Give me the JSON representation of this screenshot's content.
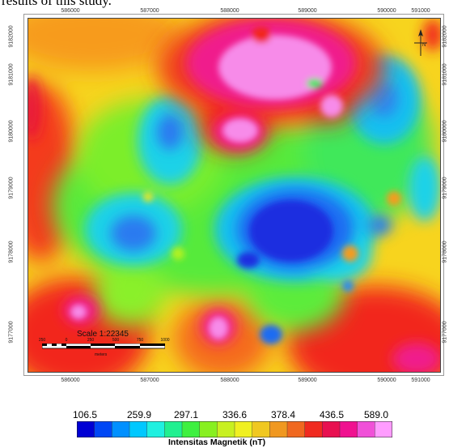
{
  "caption": "results of this study.",
  "map": {
    "x_ticks": [
      "586000",
      "587000",
      "588000",
      "589000",
      "590000",
      "591000"
    ],
    "y_ticks": [
      "9182000",
      "9181000",
      "9180000",
      "9179000",
      "9178000",
      "9177000"
    ],
    "scale": {
      "title": "Scale 1:22345",
      "ticks": [
        "250",
        "0",
        "250",
        "500",
        "750",
        "1000"
      ],
      "unit": "meters"
    },
    "north_label": "N",
    "colors": {
      "deep_blue": "#1a2fe0",
      "blue": "#1d6cf2",
      "cyan": "#19c9ef",
      "green": "#2ee85a",
      "yellow_green": "#b6f21f",
      "yellow": "#f2e71e",
      "orange": "#f79b1c",
      "red": "#f2261b",
      "magenta": "#f01b8c",
      "pink": "#f78be9"
    }
  },
  "legend": {
    "labels": [
      "106.5",
      "259.9",
      "297.1",
      "336.6",
      "378.4",
      "436.5",
      "589.0"
    ],
    "title": "Intensitas Magnetik (nT)",
    "colors": [
      "#0000d4",
      "#0047f5",
      "#0090ff",
      "#00c8ff",
      "#1ff0e0",
      "#20f090",
      "#3ef040",
      "#88f020",
      "#c8f020",
      "#f0f020",
      "#f0c820",
      "#f09820",
      "#f06820",
      "#f02a20",
      "#e81050",
      "#f01090",
      "#f050d8",
      "#ff9cff"
    ]
  }
}
